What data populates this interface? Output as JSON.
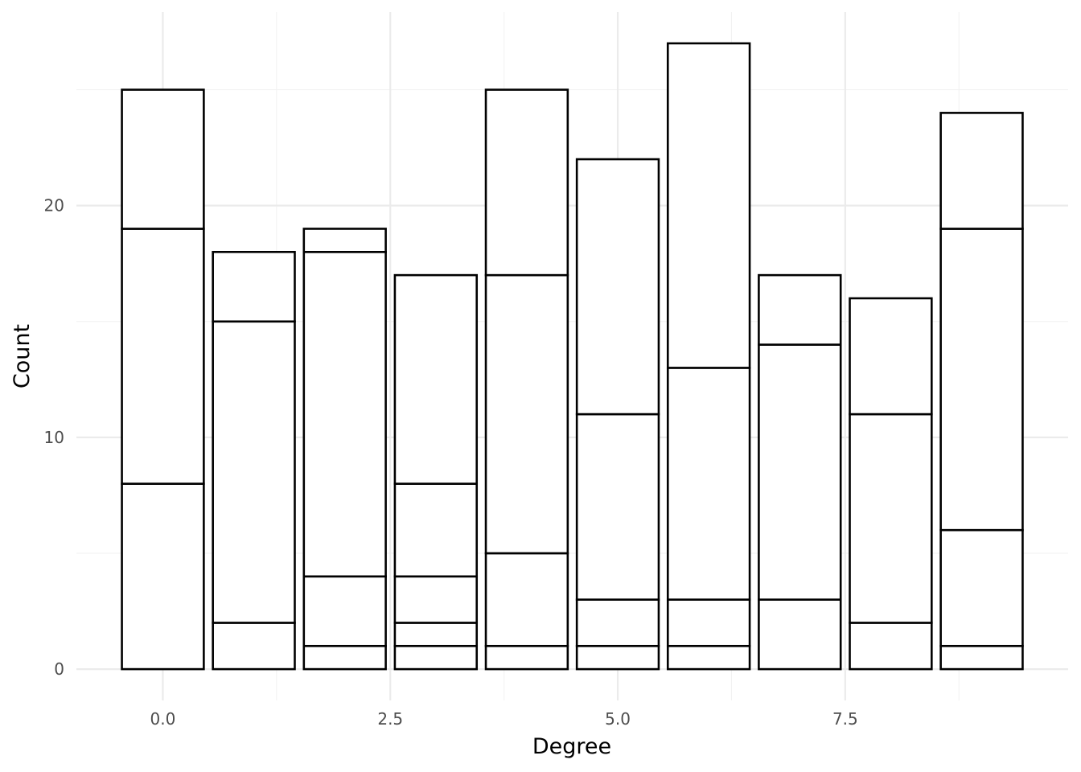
{
  "chart_data": {
    "type": "bar",
    "stacked": true,
    "xlabel": "Degree",
    "ylabel": "Count",
    "x": [
      0,
      1,
      2,
      3,
      4,
      5,
      6,
      7,
      8,
      9
    ],
    "segment_boundaries": [
      [
        8,
        19,
        25
      ],
      [
        2,
        15,
        18
      ],
      [
        1,
        4,
        18,
        19
      ],
      [
        1,
        2,
        4,
        8,
        17
      ],
      [
        1,
        5,
        17,
        25
      ],
      [
        1,
        3,
        11,
        22
      ],
      [
        1,
        3,
        13,
        27
      ],
      [
        3,
        14,
        17
      ],
      [
        2,
        11,
        16
      ],
      [
        1,
        6,
        19,
        24
      ]
    ],
    "totals": [
      25,
      18,
      19,
      17,
      25,
      22,
      27,
      17,
      16,
      24
    ],
    "xlim": [
      -0.95,
      9.95
    ],
    "ylim": [
      -1.35,
      28.35
    ],
    "x_ticks": [
      0.0,
      2.5,
      5.0,
      7.5
    ],
    "x_tick_labels": [
      "0.0",
      "2.5",
      "5.0",
      "7.5"
    ],
    "y_ticks": [
      0,
      10,
      20
    ],
    "y_tick_labels": [
      "0",
      "10",
      "20"
    ],
    "bar_fill": "#ffffff",
    "bar_outline": "#000000",
    "grid": true,
    "legend": "none"
  }
}
